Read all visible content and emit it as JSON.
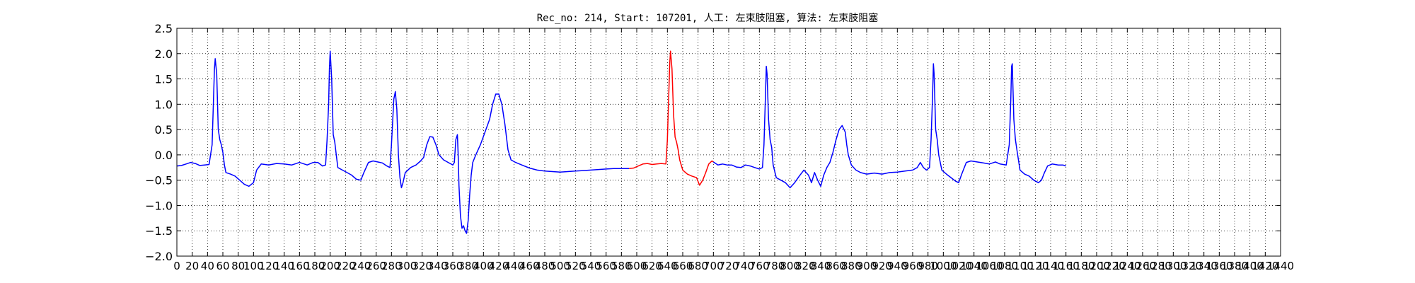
{
  "chart_data": {
    "type": "line",
    "title": "Rec_no: 214, Start: 107201, 人工: 左束肢阻塞, 算法: 左束肢阻塞",
    "xlabel": "",
    "ylabel": "",
    "xlim": [
      0,
      1440
    ],
    "ylim": [
      -2.0,
      2.5
    ],
    "grid": true,
    "y_ticks": [
      -2.0,
      -1.5,
      -1.0,
      -0.5,
      0.0,
      0.5,
      1.0,
      1.5,
      2.0,
      2.5
    ],
    "y_tick_labels": [
      "−2.0",
      "−1.5",
      "−1.0",
      "−0.5",
      "0.0",
      "0.5",
      "1.0",
      "1.5",
      "2.0",
      "2.5"
    ],
    "x_ticks": [
      0,
      20,
      40,
      60,
      80,
      100,
      120,
      140,
      160,
      180,
      200,
      220,
      240,
      260,
      280,
      300,
      320,
      340,
      360,
      380,
      400,
      420,
      440,
      460,
      480,
      500,
      520,
      540,
      560,
      580,
      600,
      620,
      640,
      660,
      680,
      700,
      720,
      740,
      760,
      780,
      800,
      820,
      840,
      860,
      880,
      900,
      920,
      940,
      960,
      980,
      1000,
      1020,
      1040,
      1060,
      1080,
      1100,
      1120,
      1140,
      1160,
      1180,
      1200,
      1220,
      1240,
      1260,
      1280,
      1300,
      1320,
      1340,
      1360,
      1380,
      1400,
      1420,
      1440
    ],
    "x_tick_labels": [
      "0",
      "20",
      "40",
      "60",
      "80",
      "100",
      "120",
      "140",
      "160",
      "180",
      "200",
      "220",
      "240",
      "260",
      "280",
      "300",
      "320",
      "340",
      "360",
      "380",
      "400",
      "420",
      "440",
      "460",
      "480",
      "500",
      "520",
      "540",
      "560",
      "580",
      "600",
      "620",
      "640",
      "660",
      "680",
      "700",
      "720",
      "740",
      "760",
      "780",
      "800",
      "820",
      "840",
      "860",
      "880",
      "900",
      "920",
      "940",
      "960",
      "980",
      "1000",
      "1020",
      "1040",
      "1060",
      "1080",
      "1100",
      "1120",
      "1140",
      "1160",
      "1180",
      "1200",
      "1220",
      "1240",
      "1260",
      "1280",
      "1300",
      "1320",
      "1340",
      "1360",
      "1380",
      "1400",
      "1420",
      "1440"
    ],
    "series": [
      {
        "color": "#0000ff",
        "points": [
          [
            0,
            -0.22
          ],
          [
            6,
            -0.21
          ],
          [
            12,
            -0.18
          ],
          [
            18,
            -0.15
          ],
          [
            24,
            -0.17
          ],
          [
            30,
            -0.21
          ],
          [
            36,
            -0.2
          ],
          [
            42,
            -0.19
          ],
          [
            46,
            0.2
          ],
          [
            48,
            1.2
          ],
          [
            49,
            1.7
          ],
          [
            50,
            1.9
          ],
          [
            52,
            1.6
          ],
          [
            54,
            0.5
          ],
          [
            56,
            0.3
          ],
          [
            58,
            0.2
          ],
          [
            60,
            0.05
          ],
          [
            62,
            -0.2
          ],
          [
            64,
            -0.35
          ],
          [
            70,
            -0.38
          ],
          [
            76,
            -0.42
          ],
          [
            82,
            -0.5
          ],
          [
            88,
            -0.58
          ],
          [
            94,
            -0.62
          ],
          [
            100,
            -0.55
          ],
          [
            104,
            -0.3
          ],
          [
            110,
            -0.18
          ],
          [
            120,
            -0.2
          ],
          [
            130,
            -0.17
          ],
          [
            140,
            -0.18
          ],
          [
            150,
            -0.2
          ],
          [
            160,
            -0.15
          ],
          [
            170,
            -0.2
          ],
          [
            178,
            -0.15
          ],
          [
            184,
            -0.15
          ],
          [
            190,
            -0.22
          ],
          [
            194,
            -0.2
          ],
          [
            196,
            0.3
          ],
          [
            198,
            1.0
          ],
          [
            199,
            1.7
          ],
          [
            200,
            2.05
          ],
          [
            202,
            1.5
          ],
          [
            204,
            0.4
          ],
          [
            206,
            0.25
          ],
          [
            208,
            0.0
          ],
          [
            210,
            -0.25
          ],
          [
            216,
            -0.3
          ],
          [
            222,
            -0.35
          ],
          [
            228,
            -0.4
          ],
          [
            234,
            -0.48
          ],
          [
            240,
            -0.5
          ],
          [
            244,
            -0.35
          ],
          [
            250,
            -0.15
          ],
          [
            256,
            -0.12
          ],
          [
            262,
            -0.14
          ],
          [
            268,
            -0.16
          ],
          [
            274,
            -0.22
          ],
          [
            278,
            -0.25
          ],
          [
            280,
            0.2
          ],
          [
            283,
            1.1
          ],
          [
            285,
            1.25
          ],
          [
            287,
            0.9
          ],
          [
            289,
            0.0
          ],
          [
            291,
            -0.45
          ],
          [
            293,
            -0.65
          ],
          [
            295,
            -0.55
          ],
          [
            298,
            -0.35
          ],
          [
            305,
            -0.25
          ],
          [
            312,
            -0.2
          ],
          [
            318,
            -0.12
          ],
          [
            322,
            -0.05
          ],
          [
            326,
            0.2
          ],
          [
            330,
            0.36
          ],
          [
            334,
            0.35
          ],
          [
            338,
            0.2
          ],
          [
            342,
            0.0
          ],
          [
            348,
            -0.1
          ],
          [
            354,
            -0.15
          ],
          [
            360,
            -0.2
          ],
          [
            362,
            -0.15
          ],
          [
            364,
            0.3
          ],
          [
            366,
            0.4
          ],
          [
            367,
            0.0
          ],
          [
            368,
            -0.6
          ],
          [
            370,
            -1.2
          ],
          [
            372,
            -1.45
          ],
          [
            374,
            -1.4
          ],
          [
            376,
            -1.5
          ],
          [
            378,
            -1.55
          ],
          [
            380,
            -1.3
          ],
          [
            382,
            -0.8
          ],
          [
            384,
            -0.4
          ],
          [
            386,
            -0.15
          ],
          [
            390,
            0.0
          ],
          [
            396,
            0.2
          ],
          [
            402,
            0.45
          ],
          [
            408,
            0.7
          ],
          [
            412,
            1.0
          ],
          [
            416,
            1.2
          ],
          [
            420,
            1.2
          ],
          [
            424,
            1.0
          ],
          [
            428,
            0.6
          ],
          [
            432,
            0.1
          ],
          [
            436,
            -0.1
          ],
          [
            442,
            -0.15
          ],
          [
            450,
            -0.2
          ],
          [
            460,
            -0.26
          ],
          [
            470,
            -0.3
          ],
          [
            480,
            -0.32
          ],
          [
            490,
            -0.33
          ],
          [
            500,
            -0.34
          ],
          [
            510,
            -0.33
          ],
          [
            520,
            -0.32
          ],
          [
            530,
            -0.31
          ],
          [
            540,
            -0.3
          ],
          [
            550,
            -0.29
          ],
          [
            560,
            -0.28
          ],
          [
            570,
            -0.27
          ],
          [
            580,
            -0.27
          ],
          [
            590,
            -0.27
          ]
        ]
      },
      {
        "color": "#ff0000",
        "points": [
          [
            590,
            -0.27
          ],
          [
            596,
            -0.26
          ],
          [
            602,
            -0.22
          ],
          [
            608,
            -0.18
          ],
          [
            614,
            -0.17
          ],
          [
            620,
            -0.19
          ],
          [
            626,
            -0.18
          ],
          [
            632,
            -0.17
          ],
          [
            638,
            -0.18
          ],
          [
            640,
            0.3
          ],
          [
            642,
            1.3
          ],
          [
            643,
            1.8
          ],
          [
            644,
            2.05
          ],
          [
            646,
            1.7
          ],
          [
            648,
            0.8
          ],
          [
            650,
            0.35
          ],
          [
            652,
            0.25
          ],
          [
            654,
            0.1
          ],
          [
            656,
            -0.1
          ],
          [
            660,
            -0.3
          ],
          [
            666,
            -0.38
          ],
          [
            672,
            -0.42
          ],
          [
            678,
            -0.45
          ],
          [
            682,
            -0.6
          ],
          [
            686,
            -0.5
          ],
          [
            690,
            -0.35
          ],
          [
            694,
            -0.18
          ],
          [
            698,
            -0.12
          ],
          [
            700,
            -0.14
          ]
        ]
      },
      {
        "color": "#0000ff",
        "points": [
          [
            700,
            -0.14
          ],
          [
            706,
            -0.2
          ],
          [
            712,
            -0.18
          ],
          [
            718,
            -0.2
          ],
          [
            724,
            -0.2
          ],
          [
            730,
            -0.24
          ],
          [
            736,
            -0.25
          ],
          [
            742,
            -0.2
          ],
          [
            748,
            -0.22
          ],
          [
            754,
            -0.25
          ],
          [
            760,
            -0.28
          ],
          [
            764,
            -0.25
          ],
          [
            766,
            0.2
          ],
          [
            768,
            1.2
          ],
          [
            769,
            1.75
          ],
          [
            770,
            1.6
          ],
          [
            772,
            0.7
          ],
          [
            774,
            0.3
          ],
          [
            776,
            0.15
          ],
          [
            778,
            -0.2
          ],
          [
            782,
            -0.45
          ],
          [
            788,
            -0.5
          ],
          [
            794,
            -0.55
          ],
          [
            800,
            -0.65
          ],
          [
            806,
            -0.55
          ],
          [
            812,
            -0.42
          ],
          [
            818,
            -0.3
          ],
          [
            824,
            -0.4
          ],
          [
            828,
            -0.55
          ],
          [
            832,
            -0.35
          ],
          [
            836,
            -0.5
          ],
          [
            840,
            -0.62
          ],
          [
            844,
            -0.4
          ],
          [
            848,
            -0.25
          ],
          [
            852,
            -0.15
          ],
          [
            856,
            0.05
          ],
          [
            860,
            0.3
          ],
          [
            864,
            0.5
          ],
          [
            868,
            0.58
          ],
          [
            872,
            0.45
          ],
          [
            874,
            0.2
          ],
          [
            876,
            0.0
          ],
          [
            880,
            -0.2
          ],
          [
            886,
            -0.3
          ],
          [
            892,
            -0.35
          ],
          [
            900,
            -0.38
          ],
          [
            910,
            -0.36
          ],
          [
            920,
            -0.38
          ],
          [
            930,
            -0.35
          ],
          [
            940,
            -0.34
          ],
          [
            950,
            -0.32
          ],
          [
            960,
            -0.3
          ],
          [
            966,
            -0.25
          ],
          [
            970,
            -0.15
          ],
          [
            974,
            -0.25
          ],
          [
            978,
            -0.3
          ],
          [
            982,
            -0.25
          ],
          [
            984,
            0.3
          ],
          [
            986,
            1.2
          ],
          [
            987,
            1.8
          ],
          [
            988,
            1.6
          ],
          [
            990,
            0.5
          ],
          [
            992,
            0.3
          ],
          [
            994,
            0.0
          ],
          [
            998,
            -0.3
          ],
          [
            1004,
            -0.38
          ],
          [
            1010,
            -0.45
          ],
          [
            1016,
            -0.52
          ],
          [
            1020,
            -0.55
          ],
          [
            1024,
            -0.38
          ],
          [
            1030,
            -0.15
          ],
          [
            1036,
            -0.12
          ],
          [
            1044,
            -0.14
          ],
          [
            1052,
            -0.16
          ],
          [
            1060,
            -0.18
          ],
          [
            1068,
            -0.14
          ],
          [
            1074,
            -0.18
          ],
          [
            1082,
            -0.2
          ],
          [
            1086,
            0.2
          ],
          [
            1088,
            1.1
          ],
          [
            1089,
            1.75
          ],
          [
            1090,
            1.8
          ],
          [
            1092,
            0.7
          ],
          [
            1094,
            0.3
          ],
          [
            1096,
            0.1
          ],
          [
            1100,
            -0.3
          ],
          [
            1106,
            -0.38
          ],
          [
            1112,
            -0.42
          ],
          [
            1118,
            -0.5
          ],
          [
            1124,
            -0.55
          ],
          [
            1128,
            -0.5
          ],
          [
            1132,
            -0.35
          ],
          [
            1136,
            -0.22
          ],
          [
            1142,
            -0.18
          ],
          [
            1150,
            -0.2
          ],
          [
            1156,
            -0.2
          ],
          [
            1160,
            -0.22
          ]
        ]
      }
    ]
  }
}
